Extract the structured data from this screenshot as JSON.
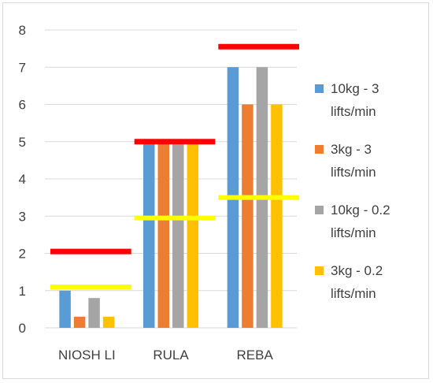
{
  "chart_data": {
    "type": "bar",
    "title": "",
    "xlabel": "",
    "ylabel": "",
    "ylim": [
      0,
      8
    ],
    "yticks": [
      "0",
      "1",
      "2",
      "3",
      "4",
      "5",
      "6",
      "7",
      "8"
    ],
    "grid": true,
    "legend_position": "right",
    "categories": [
      "NIOSH LI",
      "RULA",
      "REBA"
    ],
    "series": [
      {
        "name": "10kg - 3 lifts/min",
        "legend_lines": [
          "10kg - 3",
          "lifts/min"
        ],
        "color": "#5b9bd5",
        "values": [
          1.0,
          5.0,
          7.0
        ]
      },
      {
        "name": "3kg - 3 lifts/min",
        "legend_lines": [
          "3kg - 3",
          "lifts/min"
        ],
        "color": "#ed7d31",
        "values": [
          0.3,
          5.0,
          6.0
        ]
      },
      {
        "name": "10kg - 0.2 lifts/min",
        "legend_lines": [
          "10kg - 0.2",
          "lifts/min"
        ],
        "color": "#a5a5a5",
        "values": [
          0.8,
          5.0,
          7.0
        ]
      },
      {
        "name": "3kg - 0.2 lifts/min",
        "legend_lines": [
          "3kg - 0.2",
          "lifts/min"
        ],
        "color": "#ffc000",
        "values": [
          0.3,
          5.0,
          6.0
        ]
      }
    ],
    "threshold_lines": [
      {
        "category": "NIOSH LI",
        "red": 2.05,
        "yellow": 1.1
      },
      {
        "category": "RULA",
        "red": 5.0,
        "yellow": 2.95
      },
      {
        "category": "REBA",
        "red": 7.55,
        "yellow": 3.5
      }
    ],
    "threshold_colors": {
      "red": "#ff0000",
      "yellow": "#ffff00"
    }
  }
}
